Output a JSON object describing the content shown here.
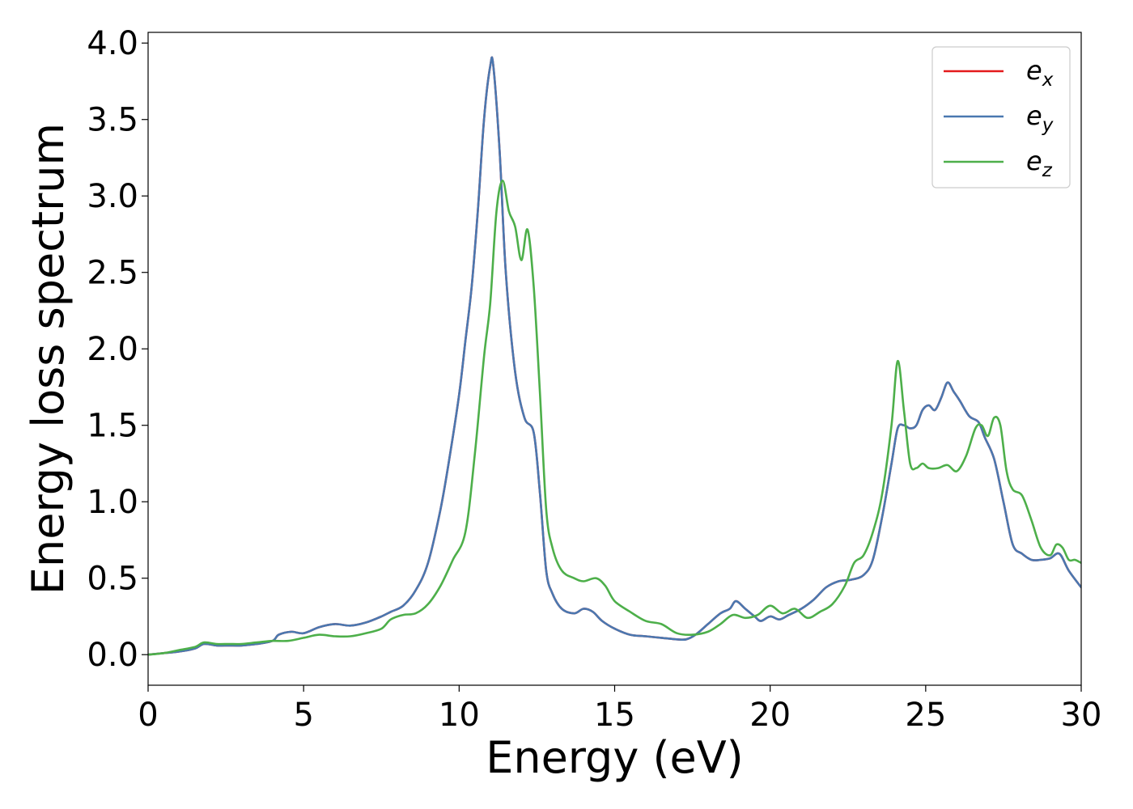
{
  "chart_data": {
    "type": "line",
    "xlabel": "Energy (eV)",
    "ylabel": "Energy loss spectrum",
    "xlim": [
      0,
      30
    ],
    "ylim": [
      -0.2,
      4.07
    ],
    "xticks": [
      0,
      5,
      10,
      15,
      20,
      25,
      30
    ],
    "xtick_labels": [
      "0",
      "5",
      "10",
      "15",
      "20",
      "25",
      "30"
    ],
    "yticks": [
      0.0,
      0.5,
      1.0,
      1.5,
      2.0,
      2.5,
      3.0,
      3.5,
      4.0
    ],
    "ytick_labels": [
      "0.0",
      "0.5",
      "1.0",
      "1.5",
      "2.0",
      "2.5",
      "3.0",
      "3.5",
      "4.0"
    ],
    "grid": false,
    "legend_position": "top-right",
    "series": [
      {
        "name": "e",
        "subscript": "x",
        "color": "#e41a1c",
        "x": [
          0,
          0.5,
          1,
          1.5,
          1.8,
          2.2,
          2.6,
          3,
          3.5,
          4.0,
          4.2,
          4.6,
          5.0,
          5.5,
          6.0,
          6.5,
          7.0,
          7.5,
          7.8,
          8.2,
          8.6,
          9.0,
          9.4,
          9.7,
          10.0,
          10.2,
          10.4,
          10.6,
          10.8,
          11.0,
          11.1,
          11.3,
          11.5,
          11.8,
          12.1,
          12.4,
          12.6,
          12.8,
          13.0,
          13.3,
          13.7,
          14.0,
          14.3,
          14.6,
          15.0,
          15.5,
          16.0,
          16.5,
          17.0,
          17.3,
          17.6,
          18.0,
          18.4,
          18.7,
          18.9,
          19.2,
          19.5,
          19.7,
          20.0,
          20.3,
          20.6,
          21.0,
          21.4,
          21.8,
          22.2,
          22.6,
          23.0,
          23.3,
          23.6,
          23.9,
          24.1,
          24.3,
          24.5,
          24.7,
          24.9,
          25.1,
          25.3,
          25.5,
          25.7,
          25.9,
          26.1,
          26.4,
          26.7,
          26.9,
          27.2,
          27.5,
          27.8,
          28.1,
          28.4,
          28.7,
          29.0,
          29.3,
          29.6,
          30.0
        ],
        "y": [
          0.0,
          0.01,
          0.02,
          0.04,
          0.07,
          0.06,
          0.06,
          0.06,
          0.07,
          0.09,
          0.13,
          0.15,
          0.14,
          0.18,
          0.2,
          0.19,
          0.21,
          0.25,
          0.28,
          0.32,
          0.42,
          0.6,
          0.95,
          1.3,
          1.7,
          2.05,
          2.4,
          2.9,
          3.5,
          3.85,
          3.85,
          3.3,
          2.5,
          1.85,
          1.55,
          1.45,
          1.05,
          0.55,
          0.4,
          0.3,
          0.27,
          0.3,
          0.28,
          0.22,
          0.17,
          0.13,
          0.12,
          0.11,
          0.1,
          0.1,
          0.13,
          0.2,
          0.27,
          0.3,
          0.35,
          0.3,
          0.25,
          0.22,
          0.25,
          0.23,
          0.26,
          0.3,
          0.36,
          0.44,
          0.48,
          0.49,
          0.52,
          0.62,
          0.9,
          1.25,
          1.48,
          1.5,
          1.48,
          1.5,
          1.6,
          1.63,
          1.6,
          1.68,
          1.78,
          1.72,
          1.66,
          1.56,
          1.52,
          1.42,
          1.28,
          1.0,
          0.72,
          0.66,
          0.62,
          0.62,
          0.63,
          0.66,
          0.55,
          0.44
        ]
      },
      {
        "name": "e",
        "subscript": "y",
        "color": "#4a78b0",
        "x": [
          0,
          0.5,
          1,
          1.5,
          1.8,
          2.2,
          2.6,
          3,
          3.5,
          4.0,
          4.2,
          4.6,
          5.0,
          5.5,
          6.0,
          6.5,
          7.0,
          7.5,
          7.8,
          8.2,
          8.6,
          9.0,
          9.4,
          9.7,
          10.0,
          10.2,
          10.4,
          10.6,
          10.8,
          11.0,
          11.1,
          11.3,
          11.5,
          11.8,
          12.1,
          12.4,
          12.6,
          12.8,
          13.0,
          13.3,
          13.7,
          14.0,
          14.3,
          14.6,
          15.0,
          15.5,
          16.0,
          16.5,
          17.0,
          17.3,
          17.6,
          18.0,
          18.4,
          18.7,
          18.9,
          19.2,
          19.5,
          19.7,
          20.0,
          20.3,
          20.6,
          21.0,
          21.4,
          21.8,
          22.2,
          22.6,
          23.0,
          23.3,
          23.6,
          23.9,
          24.1,
          24.3,
          24.5,
          24.7,
          24.9,
          25.1,
          25.3,
          25.5,
          25.7,
          25.9,
          26.1,
          26.4,
          26.7,
          26.9,
          27.2,
          27.5,
          27.8,
          28.1,
          28.4,
          28.7,
          29.0,
          29.3,
          29.6,
          30.0
        ],
        "y": [
          0.0,
          0.01,
          0.02,
          0.04,
          0.07,
          0.06,
          0.06,
          0.06,
          0.07,
          0.09,
          0.13,
          0.15,
          0.14,
          0.18,
          0.2,
          0.19,
          0.21,
          0.25,
          0.28,
          0.32,
          0.42,
          0.6,
          0.95,
          1.3,
          1.7,
          2.05,
          2.4,
          2.9,
          3.5,
          3.85,
          3.85,
          3.3,
          2.5,
          1.85,
          1.55,
          1.45,
          1.05,
          0.55,
          0.4,
          0.3,
          0.27,
          0.3,
          0.28,
          0.22,
          0.17,
          0.13,
          0.12,
          0.11,
          0.1,
          0.1,
          0.13,
          0.2,
          0.27,
          0.3,
          0.35,
          0.3,
          0.25,
          0.22,
          0.25,
          0.23,
          0.26,
          0.3,
          0.36,
          0.44,
          0.48,
          0.49,
          0.52,
          0.62,
          0.9,
          1.25,
          1.48,
          1.5,
          1.48,
          1.5,
          1.6,
          1.63,
          1.6,
          1.68,
          1.78,
          1.72,
          1.66,
          1.56,
          1.52,
          1.42,
          1.28,
          1.0,
          0.72,
          0.66,
          0.62,
          0.62,
          0.63,
          0.66,
          0.55,
          0.44
        ]
      },
      {
        "name": "e",
        "subscript": "z",
        "color": "#4daf4a",
        "x": [
          0,
          0.5,
          1,
          1.5,
          1.8,
          2.2,
          2.6,
          3,
          3.5,
          4.0,
          4.5,
          5.0,
          5.5,
          6.0,
          6.5,
          7.0,
          7.5,
          7.8,
          8.2,
          8.6,
          9.0,
          9.4,
          9.8,
          10.2,
          10.5,
          10.8,
          11.0,
          11.2,
          11.4,
          11.6,
          11.8,
          12.0,
          12.2,
          12.4,
          12.6,
          12.8,
          13.0,
          13.3,
          13.7,
          14.0,
          14.4,
          14.7,
          15.0,
          15.5,
          16.0,
          16.5,
          17.0,
          17.5,
          18.0,
          18.4,
          18.8,
          19.2,
          19.6,
          20.0,
          20.4,
          20.8,
          21.2,
          21.6,
          22.0,
          22.4,
          22.7,
          23.0,
          23.3,
          23.6,
          23.9,
          24.1,
          24.3,
          24.5,
          24.7,
          24.9,
          25.1,
          25.4,
          25.7,
          26.0,
          26.3,
          26.6,
          26.8,
          27.0,
          27.2,
          27.4,
          27.6,
          27.8,
          28.1,
          28.4,
          28.7,
          29.0,
          29.2,
          29.4,
          29.6,
          29.8,
          30.0
        ],
        "y": [
          0.0,
          0.01,
          0.03,
          0.05,
          0.08,
          0.07,
          0.07,
          0.07,
          0.08,
          0.09,
          0.09,
          0.11,
          0.13,
          0.12,
          0.12,
          0.14,
          0.17,
          0.23,
          0.26,
          0.27,
          0.33,
          0.45,
          0.62,
          0.8,
          1.3,
          1.95,
          2.3,
          2.9,
          3.1,
          2.9,
          2.8,
          2.58,
          2.78,
          2.4,
          1.7,
          0.95,
          0.7,
          0.55,
          0.5,
          0.48,
          0.5,
          0.45,
          0.35,
          0.28,
          0.22,
          0.2,
          0.14,
          0.13,
          0.15,
          0.2,
          0.26,
          0.24,
          0.26,
          0.32,
          0.27,
          0.3,
          0.24,
          0.28,
          0.33,
          0.45,
          0.6,
          0.65,
          0.8,
          1.05,
          1.5,
          1.92,
          1.6,
          1.25,
          1.22,
          1.25,
          1.22,
          1.22,
          1.24,
          1.2,
          1.3,
          1.48,
          1.5,
          1.43,
          1.55,
          1.5,
          1.2,
          1.08,
          1.04,
          0.88,
          0.7,
          0.65,
          0.72,
          0.7,
          0.62,
          0.62,
          0.6
        ]
      }
    ]
  }
}
